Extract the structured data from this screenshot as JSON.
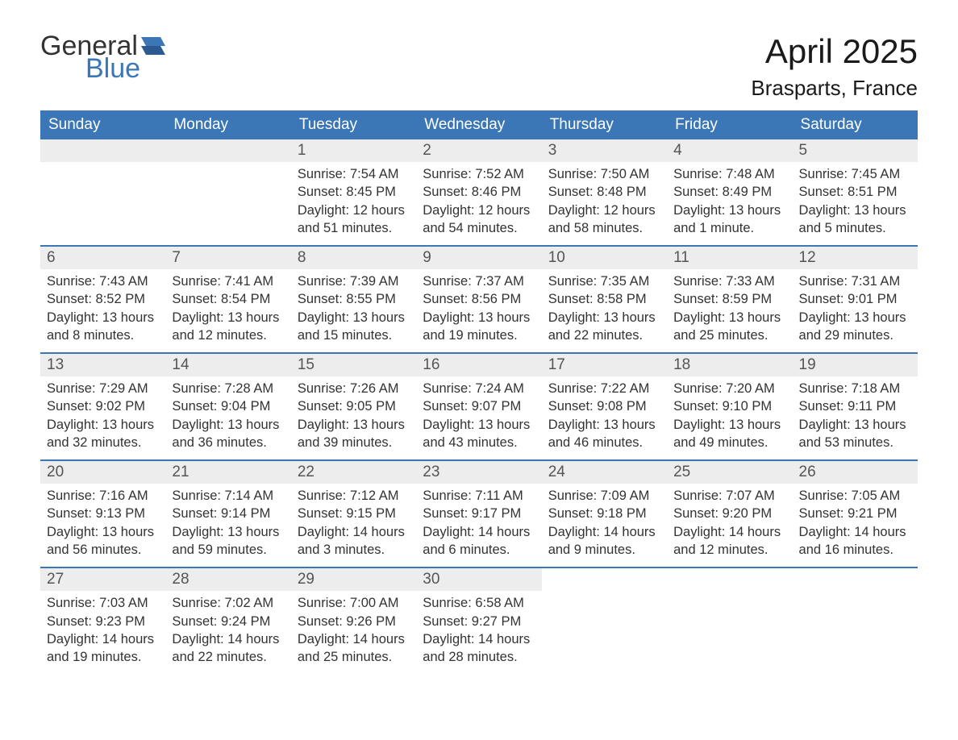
{
  "logo": {
    "text_top": "General",
    "text_bottom": "Blue",
    "flag_color": "#3b77b7"
  },
  "title": "April 2025",
  "location": "Brasparts, France",
  "colors": {
    "header_bg": "#3b77b7",
    "header_text": "#ffffff",
    "daynum_bg": "#ededed",
    "body_text": "#333333",
    "row_border": "#3b77b7",
    "page_bg": "#ffffff"
  },
  "fonts": {
    "title_size_pt": 32,
    "location_size_pt": 20,
    "weekday_size_pt": 14,
    "body_size_pt": 12
  },
  "weekdays": [
    "Sunday",
    "Monday",
    "Tuesday",
    "Wednesday",
    "Thursday",
    "Friday",
    "Saturday"
  ],
  "weeks": [
    [
      {
        "day": null
      },
      {
        "day": null
      },
      {
        "day": "1",
        "sunrise": "Sunrise: 7:54 AM",
        "sunset": "Sunset: 8:45 PM",
        "daylight1": "Daylight: 12 hours",
        "daylight2": "and 51 minutes."
      },
      {
        "day": "2",
        "sunrise": "Sunrise: 7:52 AM",
        "sunset": "Sunset: 8:46 PM",
        "daylight1": "Daylight: 12 hours",
        "daylight2": "and 54 minutes."
      },
      {
        "day": "3",
        "sunrise": "Sunrise: 7:50 AM",
        "sunset": "Sunset: 8:48 PM",
        "daylight1": "Daylight: 12 hours",
        "daylight2": "and 58 minutes."
      },
      {
        "day": "4",
        "sunrise": "Sunrise: 7:48 AM",
        "sunset": "Sunset: 8:49 PM",
        "daylight1": "Daylight: 13 hours",
        "daylight2": "and 1 minute."
      },
      {
        "day": "5",
        "sunrise": "Sunrise: 7:45 AM",
        "sunset": "Sunset: 8:51 PM",
        "daylight1": "Daylight: 13 hours",
        "daylight2": "and 5 minutes."
      }
    ],
    [
      {
        "day": "6",
        "sunrise": "Sunrise: 7:43 AM",
        "sunset": "Sunset: 8:52 PM",
        "daylight1": "Daylight: 13 hours",
        "daylight2": "and 8 minutes."
      },
      {
        "day": "7",
        "sunrise": "Sunrise: 7:41 AM",
        "sunset": "Sunset: 8:54 PM",
        "daylight1": "Daylight: 13 hours",
        "daylight2": "and 12 minutes."
      },
      {
        "day": "8",
        "sunrise": "Sunrise: 7:39 AM",
        "sunset": "Sunset: 8:55 PM",
        "daylight1": "Daylight: 13 hours",
        "daylight2": "and 15 minutes."
      },
      {
        "day": "9",
        "sunrise": "Sunrise: 7:37 AM",
        "sunset": "Sunset: 8:56 PM",
        "daylight1": "Daylight: 13 hours",
        "daylight2": "and 19 minutes."
      },
      {
        "day": "10",
        "sunrise": "Sunrise: 7:35 AM",
        "sunset": "Sunset: 8:58 PM",
        "daylight1": "Daylight: 13 hours",
        "daylight2": "and 22 minutes."
      },
      {
        "day": "11",
        "sunrise": "Sunrise: 7:33 AM",
        "sunset": "Sunset: 8:59 PM",
        "daylight1": "Daylight: 13 hours",
        "daylight2": "and 25 minutes."
      },
      {
        "day": "12",
        "sunrise": "Sunrise: 7:31 AM",
        "sunset": "Sunset: 9:01 PM",
        "daylight1": "Daylight: 13 hours",
        "daylight2": "and 29 minutes."
      }
    ],
    [
      {
        "day": "13",
        "sunrise": "Sunrise: 7:29 AM",
        "sunset": "Sunset: 9:02 PM",
        "daylight1": "Daylight: 13 hours",
        "daylight2": "and 32 minutes."
      },
      {
        "day": "14",
        "sunrise": "Sunrise: 7:28 AM",
        "sunset": "Sunset: 9:04 PM",
        "daylight1": "Daylight: 13 hours",
        "daylight2": "and 36 minutes."
      },
      {
        "day": "15",
        "sunrise": "Sunrise: 7:26 AM",
        "sunset": "Sunset: 9:05 PM",
        "daylight1": "Daylight: 13 hours",
        "daylight2": "and 39 minutes."
      },
      {
        "day": "16",
        "sunrise": "Sunrise: 7:24 AM",
        "sunset": "Sunset: 9:07 PM",
        "daylight1": "Daylight: 13 hours",
        "daylight2": "and 43 minutes."
      },
      {
        "day": "17",
        "sunrise": "Sunrise: 7:22 AM",
        "sunset": "Sunset: 9:08 PM",
        "daylight1": "Daylight: 13 hours",
        "daylight2": "and 46 minutes."
      },
      {
        "day": "18",
        "sunrise": "Sunrise: 7:20 AM",
        "sunset": "Sunset: 9:10 PM",
        "daylight1": "Daylight: 13 hours",
        "daylight2": "and 49 minutes."
      },
      {
        "day": "19",
        "sunrise": "Sunrise: 7:18 AM",
        "sunset": "Sunset: 9:11 PM",
        "daylight1": "Daylight: 13 hours",
        "daylight2": "and 53 minutes."
      }
    ],
    [
      {
        "day": "20",
        "sunrise": "Sunrise: 7:16 AM",
        "sunset": "Sunset: 9:13 PM",
        "daylight1": "Daylight: 13 hours",
        "daylight2": "and 56 minutes."
      },
      {
        "day": "21",
        "sunrise": "Sunrise: 7:14 AM",
        "sunset": "Sunset: 9:14 PM",
        "daylight1": "Daylight: 13 hours",
        "daylight2": "and 59 minutes."
      },
      {
        "day": "22",
        "sunrise": "Sunrise: 7:12 AM",
        "sunset": "Sunset: 9:15 PM",
        "daylight1": "Daylight: 14 hours",
        "daylight2": "and 3 minutes."
      },
      {
        "day": "23",
        "sunrise": "Sunrise: 7:11 AM",
        "sunset": "Sunset: 9:17 PM",
        "daylight1": "Daylight: 14 hours",
        "daylight2": "and 6 minutes."
      },
      {
        "day": "24",
        "sunrise": "Sunrise: 7:09 AM",
        "sunset": "Sunset: 9:18 PM",
        "daylight1": "Daylight: 14 hours",
        "daylight2": "and 9 minutes."
      },
      {
        "day": "25",
        "sunrise": "Sunrise: 7:07 AM",
        "sunset": "Sunset: 9:20 PM",
        "daylight1": "Daylight: 14 hours",
        "daylight2": "and 12 minutes."
      },
      {
        "day": "26",
        "sunrise": "Sunrise: 7:05 AM",
        "sunset": "Sunset: 9:21 PM",
        "daylight1": "Daylight: 14 hours",
        "daylight2": "and 16 minutes."
      }
    ],
    [
      {
        "day": "27",
        "sunrise": "Sunrise: 7:03 AM",
        "sunset": "Sunset: 9:23 PM",
        "daylight1": "Daylight: 14 hours",
        "daylight2": "and 19 minutes."
      },
      {
        "day": "28",
        "sunrise": "Sunrise: 7:02 AM",
        "sunset": "Sunset: 9:24 PM",
        "daylight1": "Daylight: 14 hours",
        "daylight2": "and 22 minutes."
      },
      {
        "day": "29",
        "sunrise": "Sunrise: 7:00 AM",
        "sunset": "Sunset: 9:26 PM",
        "daylight1": "Daylight: 14 hours",
        "daylight2": "and 25 minutes."
      },
      {
        "day": "30",
        "sunrise": "Sunrise: 6:58 AM",
        "sunset": "Sunset: 9:27 PM",
        "daylight1": "Daylight: 14 hours",
        "daylight2": "and 28 minutes."
      },
      {
        "day": null
      },
      {
        "day": null
      },
      {
        "day": null
      }
    ]
  ]
}
